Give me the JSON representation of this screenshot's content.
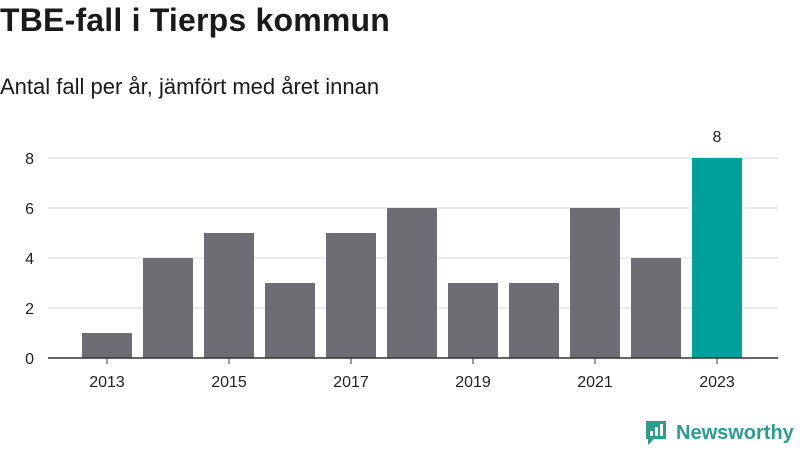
{
  "header": {
    "title": "TBE-fall i Tierps kommun",
    "subtitle": "Antal fall per år, jämfört med året innan"
  },
  "chart_data": {
    "type": "bar",
    "categories": [
      "2013",
      "2014",
      "2015",
      "2016",
      "2017",
      "2018",
      "2019",
      "2020",
      "2021",
      "2022",
      "2023"
    ],
    "values": [
      1,
      4,
      5,
      3,
      5,
      6,
      3,
      3,
      6,
      4,
      8
    ],
    "x_tick_labels": [
      "2013",
      "2015",
      "2017",
      "2019",
      "2021",
      "2023"
    ],
    "y_ticks": [
      0,
      2,
      4,
      6,
      8
    ],
    "ylim": [
      0,
      8
    ],
    "grid": true,
    "data_labels": [
      {
        "category": "2023",
        "value": 8
      }
    ],
    "colors": {
      "default_bar": "#6e6d73",
      "highlight_bar": "#00a19a",
      "grid": "#d9d9d9",
      "axis": "#333333"
    },
    "highlight_category": "2023"
  },
  "brand": {
    "name": "Newsworthy",
    "color": "#2a9d8f",
    "icon": "newsworthy-logo-icon"
  }
}
